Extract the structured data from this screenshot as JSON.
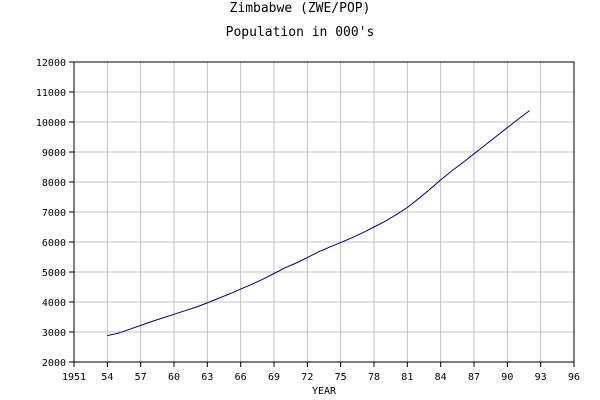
{
  "chart_data": {
    "type": "line",
    "title": "Zimbabwe (ZWE/POP)",
    "subtitle": "Population in 000's",
    "xlabel": "YEAR",
    "ylabel": "",
    "xlim": [
      1951,
      1996
    ],
    "ylim": [
      2000,
      12000
    ],
    "x_ticks": [
      1951,
      1954,
      1957,
      1960,
      1963,
      1966,
      1969,
      1972,
      1975,
      1978,
      1981,
      1984,
      1987,
      1990,
      1993,
      1996
    ],
    "x_tick_labels": [
      "1951",
      "54",
      "57",
      "60",
      "63",
      "66",
      "69",
      "72",
      "75",
      "78",
      "81",
      "84",
      "87",
      "90",
      "93",
      "96"
    ],
    "y_ticks": [
      2000,
      3000,
      4000,
      5000,
      6000,
      7000,
      8000,
      9000,
      10000,
      11000,
      12000
    ],
    "y_tick_labels": [
      "2000",
      "3000",
      "4000",
      "5000",
      "6000",
      "7000",
      "8000",
      "9000",
      "10000",
      "11000",
      "12000"
    ],
    "grid": true,
    "line_color": "#00007f",
    "grid_color": "#c0c0c0",
    "series": [
      {
        "x": [
          1954,
          1955,
          1956,
          1957,
          1958,
          1959,
          1960,
          1961,
          1962,
          1963,
          1964,
          1965,
          1966,
          1967,
          1968,
          1969,
          1970,
          1971,
          1972,
          1973,
          1974,
          1975,
          1976,
          1977,
          1978,
          1979,
          1980,
          1981,
          1982,
          1983,
          1984,
          1985,
          1986,
          1987,
          1988,
          1989,
          1990,
          1991,
          1992
        ],
        "values": [
          2880,
          2960,
          3090,
          3220,
          3350,
          3470,
          3590,
          3710,
          3830,
          3970,
          4120,
          4270,
          4430,
          4590,
          4760,
          4950,
          5140,
          5300,
          5480,
          5670,
          5830,
          5980,
          6140,
          6310,
          6500,
          6690,
          6910,
          7150,
          7440,
          7750,
          8070,
          8370,
          8650,
          8940,
          9230,
          9520,
          9810,
          10100,
          10380
        ]
      }
    ]
  }
}
